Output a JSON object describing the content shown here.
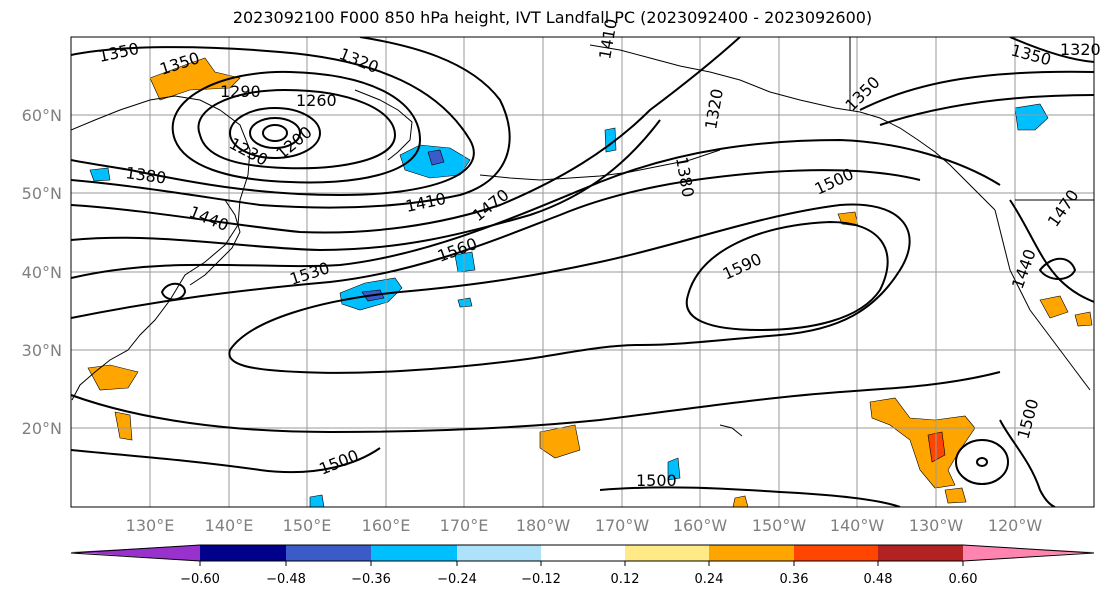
{
  "title": "2023092100 F000 850 hPa height, IVT Landfall PC (2023092400 - 2023092600)",
  "lat_labels": [
    "60°N",
    "50°N",
    "40°N",
    "30°N",
    "20°N"
  ],
  "lon_labels": [
    "130°E",
    "140°E",
    "150°E",
    "160°E",
    "170°E",
    "180°W",
    "170°W",
    "160°W",
    "150°W",
    "140°W",
    "130°W",
    "120°W"
  ],
  "contour_labels": [
    "1350",
    "1350",
    "1290",
    "1320",
    "1260",
    "1230",
    "1200",
    "1380",
    "1440",
    "1410",
    "1470",
    "1560",
    "1530",
    "1590",
    "1500",
    "1500",
    "1500",
    "1500",
    "1470",
    "1440",
    "1410",
    "1320",
    "1380",
    "1350",
    "1350",
    "1320"
  ],
  "colorbar": {
    "ticks": [
      "−0.60",
      "−0.48",
      "−0.36",
      "−0.24",
      "−0.12",
      "0.12",
      "0.24",
      "0.36",
      "0.48",
      "0.60"
    ],
    "colors": [
      "#9932CC",
      "#00008B",
      "#3A5BC8",
      "#00BFFF",
      "#ADE2FA",
      "#FFFFFF",
      "#FFEA85",
      "#FFA500",
      "#FF4500",
      "#B22222",
      "#FF85B0"
    ]
  }
}
